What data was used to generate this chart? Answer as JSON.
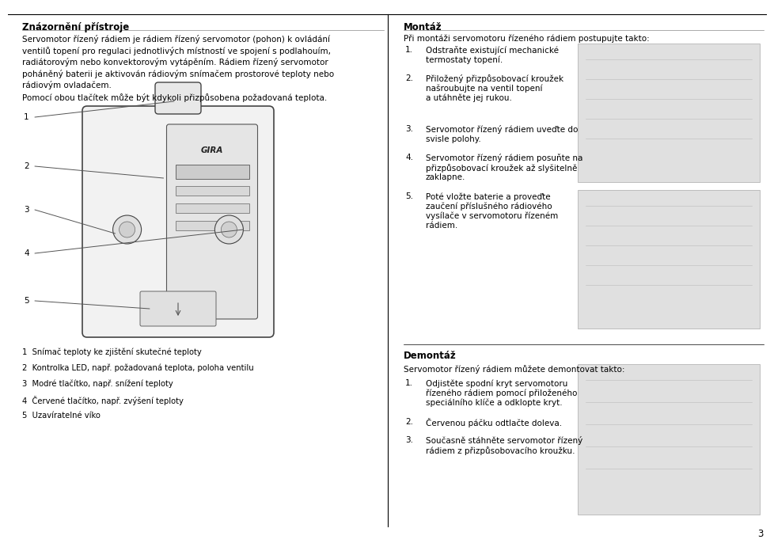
{
  "page_bg": "#ffffff",
  "left_title": "Znázornění přístroje",
  "right_title": "Montáž",
  "left_body1": "Servomotor řízený rádiem je rádiem řízený servomotor (pohon) k ovládání\nventilů topení pro regulaci jednotlivých místností ve spojení s podlahouím,\nradiátorovým nebo konvektorovým vytápěním. Rádiem řízený servomotor\npoháněný baterii je aktivován rádiovým snímačem prostorové teploty nebo\nrádiovým ovladačem.",
  "left_body2": "Pomocí obou tlačítek může být kdykoli přizpůsobena požadovaná teplota.",
  "left_labels": [
    "1  Snímač teploty ke zjištění skutečné teploty",
    "2  Kontrolka LED, např. požadovaná teplota, poloha ventilu",
    "3  Modré tlačítko, např. snížení teploty",
    "4  Červené tlačítko, např. zvýšení teploty",
    "5  Uzavíratelné víko"
  ],
  "right_intro": "Při montáži servomotoru řízeného rádiem postupujte takto:",
  "right_steps": [
    [
      "1.",
      "Odstraňte existující mechanické\ntermostaty topení."
    ],
    [
      "2.",
      "Přiložený přizpůsobovací kroužek\nnašroubujte na ventil topení\na utáhněte jej rukou."
    ],
    [
      "3.",
      "Servomotor řízený rádiem uveďte do\nsvisle polohy."
    ],
    [
      "4.",
      "Servomotor řízený rádiem posuňte na\npřizpůsobovací kroužek až slуšitelně\nzaklapne."
    ],
    [
      "5.",
      "Poté vložte baterie a proveďte\nzaučení příslušného rádiového\nvysílače v servomotoru řízeném\nrádiem."
    ]
  ],
  "demontaz_title": "Demontáž",
  "demontaz_intro": "Servomotor řízený rádiem můžete demontovat takto:",
  "demontaz_steps": [
    [
      "1.",
      "Odjistěte spodní kryt servomotoru\nřízeného rádiem pomocí přiloženého\nspeciálního klíče a odklopte kryt."
    ],
    [
      "2.",
      "Červenou páčku odtlačte doleva."
    ],
    [
      "3.",
      "Současně stáhněte servomotor řízený\nrádiem z přizpůsobovacího kroužku."
    ]
  ],
  "page_num": "3",
  "fs_title": 8.5,
  "fs_body": 7.5,
  "tc": "#000000"
}
